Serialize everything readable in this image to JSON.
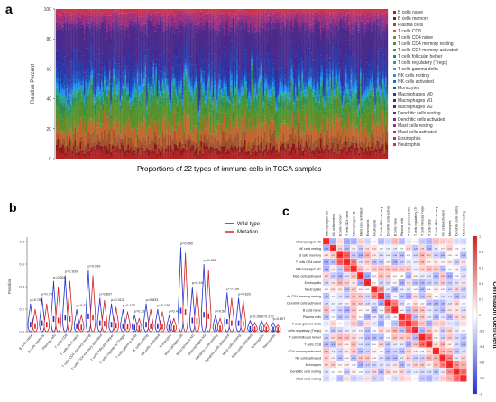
{
  "panels": {
    "a": {
      "letter": "a",
      "caption": "Proportions of 22 types of immune cells in TCGA samples"
    },
    "b": {
      "letter": "b"
    },
    "c": {
      "letter": "c"
    }
  },
  "colors": {
    "B cells naive": "#b22222",
    "B cells memory": "#8b1a1a",
    "Plasma cells": "#a0522d",
    "T cells CD8": "#c0662d",
    "T cells CD4 naive": "#7a8b2a",
    "T cells CD4 memory resting": "#5a8f2a",
    "T cells CD4 memory activated": "#3c9a3c",
    "T cells follicular helper": "#2e8b57",
    "T cells regulatory (Tregs)": "#2aa08a",
    "T cells gamma delta": "#20b2aa",
    "NK cells resting": "#1e90ff",
    "NK cells activated": "#1a6fd0",
    "Monocytes": "#2050c0",
    "Macrophages M0": "#2a3aa8",
    "Macrophages M1": "#3a2a9a",
    "Macrophages M2": "#4b2a8a",
    "Dendritic cells resting": "#6a2a8a",
    "Dendritic cells activated": "#8a2a8a",
    "Mast cells resting": "#a0307a",
    "Mast cells activated": "#b0306a",
    "Eosinophils": "#c0305a",
    "Neutrophils": "#d0304a",
    "wildtype": "#1f2fd0",
    "mutation": "#d42020"
  },
  "chart_data": [
    {
      "type": "bar",
      "title": "Proportions of 22 types of immune cells in TCGA samples",
      "ylabel": "Relative Percent",
      "ylim": [
        0,
        100
      ],
      "yticks": [
        "0",
        "20",
        "40",
        "60",
        "80",
        "100"
      ],
      "stacked": true,
      "sample_count": 250,
      "legend_position": "right",
      "series": [
        {
          "name": "B cells naive",
          "mean": 4
        },
        {
          "name": "B cells memory",
          "mean": 3
        },
        {
          "name": "Plasma cells",
          "mean": 6
        },
        {
          "name": "T cells CD8",
          "mean": 8
        },
        {
          "name": "T cells CD4 naive",
          "mean": 2
        },
        {
          "name": "T cells CD4 memory resting",
          "mean": 10
        },
        {
          "name": "T cells CD4 memory activated",
          "mean": 3
        },
        {
          "name": "T cells follicular helper",
          "mean": 4
        },
        {
          "name": "T cells regulatory (Tregs)",
          "mean": 3
        },
        {
          "name": "T cells gamma delta",
          "mean": 1
        },
        {
          "name": "NK cells resting",
          "mean": 3
        },
        {
          "name": "NK cells activated",
          "mean": 2
        },
        {
          "name": "Monocytes",
          "mean": 4
        },
        {
          "name": "Macrophages M0",
          "mean": 9
        },
        {
          "name": "Macrophages M1",
          "mean": 6
        },
        {
          "name": "Macrophages M2",
          "mean": 18
        },
        {
          "name": "Dendritic cells resting",
          "mean": 3
        },
        {
          "name": "Dendritic cells activated",
          "mean": 2
        },
        {
          "name": "Mast cells resting",
          "mean": 4
        },
        {
          "name": "Mast cells activated",
          "mean": 1
        },
        {
          "name": "Eosinophils",
          "mean": 1
        },
        {
          "name": "Neutrophils",
          "mean": 2
        }
      ]
    },
    {
      "type": "violin",
      "ylabel": "Fraction",
      "ylim": [
        0,
        0.8
      ],
      "yticks": [
        "0.0",
        "0.2",
        "0.4",
        "0.6",
        "0.8"
      ],
      "legend": [
        "Wild-type",
        "Mutation"
      ],
      "legend_position": "top-right",
      "categories": [
        "B cells naive",
        "B cells memory",
        "Plasma cells",
        "T cells CD8",
        "T cells CD4 naive",
        "T cells CD4 memory resting",
        "T cells CD4 memory activated",
        "T cells follicular helper",
        "T cells regulatory (Tregs)",
        "T cells gamma delta",
        "NK cells resting",
        "NK cells activated",
        "Monocytes",
        "Macrophages M0",
        "Macrophages M1",
        "Macrophages M2",
        "Dendritic cells resting",
        "Dendritic cells activated",
        "Mast cells resting",
        "Mast cells activated",
        "Eosinophils",
        "Neutrophils"
      ],
      "pvalues": [
        "p=0.788",
        "p=0.787",
        "p=0.828",
        "p=0.309",
        "p=0.423",
        "p=0.099",
        "p=0.607",
        "p=0.313",
        "p=0.125",
        "p=0.336",
        "p=0.833",
        "p=0.136",
        "p=0.474",
        "p=0.090",
        "p=0.159",
        "p=0.452",
        "p=0.562",
        "p=0.168",
        "p=0.620",
        "p=0.288",
        "p=0.170",
        "p=0.307"
      ],
      "wildtype_max": [
        0.25,
        0.3,
        0.45,
        0.5,
        0.2,
        0.55,
        0.3,
        0.25,
        0.2,
        0.15,
        0.25,
        0.2,
        0.15,
        0.75,
        0.4,
        0.6,
        0.15,
        0.35,
        0.3,
        0.1,
        0.1,
        0.08
      ],
      "mutation_max": [
        0.2,
        0.25,
        0.4,
        0.45,
        0.15,
        0.5,
        0.28,
        0.22,
        0.18,
        0.12,
        0.2,
        0.18,
        0.12,
        0.7,
        0.38,
        0.55,
        0.12,
        0.3,
        0.28,
        0.08,
        0.08,
        0.06
      ]
    },
    {
      "type": "heatmap",
      "legend_title": "Correlation coefficient",
      "legend_ticks": [
        "1",
        "0.8",
        "0.6",
        "0.4",
        "0.2",
        "0",
        "-0.2",
        "-0.4",
        "-0.6",
        "-0.8",
        "-1"
      ],
      "rows": [
        "Macrophages M0",
        "NK cells resting",
        "B cells memory",
        "T cells CD4 naive",
        "Macrophages M1",
        "Mast cells activated",
        "Eosinophils",
        "Neutrophils",
        "T cells CD4 memory resting",
        "Dendritic cells activated",
        "B cells naive",
        "Plasma cells",
        "T cells gamma delta",
        "T cells regulatory (Tregs)",
        "T cells follicular helper",
        "T cells CD8",
        "T cells CD4 memory activated",
        "NK cells activated",
        "Monocytes",
        "Dendritic cells resting",
        "Mast cells resting"
      ],
      "columns": [
        "Macrophages M0",
        "NK cells resting",
        "B cells memory",
        "T cells CD4 naive",
        "Macrophages M1",
        "Mast cells activated",
        "Eosinophils",
        "Neutrophils",
        "T cells CD4 memory resting",
        "Dendritic cells activated",
        "B cells naive",
        "Plasma cells",
        "T cells gamma delta",
        "T cells regulatory (Tregs)",
        "T cells follicular helper",
        "T cells CD8",
        "T cells CD4 memory activated",
        "NK cells activated",
        "Monocytes",
        "Dendritic cells resting",
        "Mast cells resting"
      ]
    }
  ]
}
